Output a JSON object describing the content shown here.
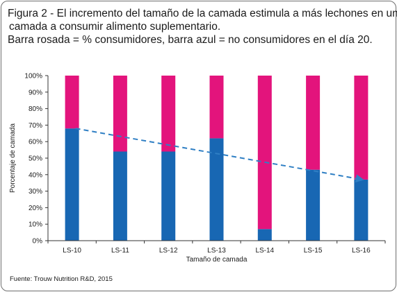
{
  "caption": {
    "line1": "Figura 2 - El incremento del tamaño de la camada estimula a más lechones en una",
    "line2": "camada a consumir alimento suplementario.",
    "line3": "Barra rosada = % consumidores, barra azul = no consumidores en el día 20."
  },
  "source": "Fuente: Trouw Nutrition R&D, 2015",
  "colors": {
    "pink": "#e3147c",
    "blue": "#1867b3",
    "trend": "#2f7fc4",
    "axis": "#333333"
  },
  "chart_data": {
    "type": "bar",
    "stacked": true,
    "categories": [
      "LS-10",
      "LS-11",
      "LS-12",
      "LS-13",
      "LS-14",
      "LS-15",
      "LS-16"
    ],
    "series": [
      {
        "values": [
          68,
          54,
          54,
          62,
          7,
          43,
          37
        ]
      },
      {
        "values": [
          32,
          46,
          46,
          38,
          93,
          57,
          63
        ]
      }
    ],
    "yticks": [
      "0%",
      "10%",
      "20%",
      "30%",
      "40%",
      "50%",
      "60%",
      "70%",
      "80%",
      "90%",
      "100%"
    ],
    "ylim": [
      0,
      100
    ],
    "xlabel": "Tamaño de camada",
    "ylabel": "Porcentaje de camada",
    "trend_line": {
      "from": [
        "LS-10",
        68
      ],
      "to": [
        "LS-16",
        37
      ],
      "style": "dashed-arrow"
    },
    "grid": false
  }
}
